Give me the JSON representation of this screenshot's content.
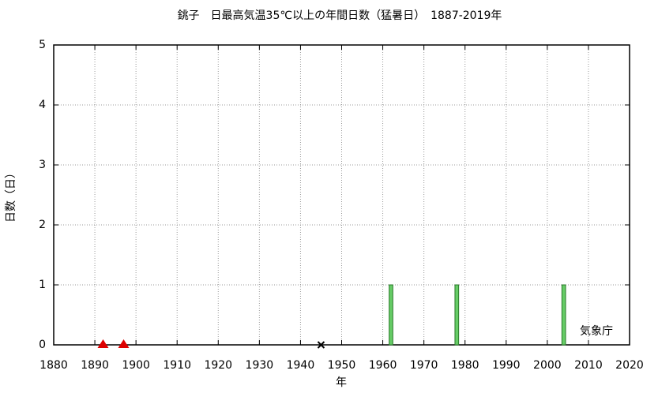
{
  "chart_data": {
    "type": "bar",
    "title": "銚子　日最高気温35℃以上の年間日数（猛暑日）　1887-2019年",
    "x_label": "年",
    "y_label": "日数（日）",
    "annotation": "気象庁",
    "series": [
      {
        "type": "bar",
        "color": "#66cc66",
        "x": [
          1962,
          1978,
          2004
        ],
        "values": [
          1,
          1,
          1
        ]
      },
      {
        "type": "triangle",
        "color": "#dd0000",
        "x": [
          1892,
          1897
        ],
        "values": [
          0,
          0
        ]
      },
      {
        "type": "cross",
        "color": "#000000",
        "x": [
          1945
        ],
        "values": [
          0
        ]
      }
    ],
    "xlim": [
      1880,
      2020
    ],
    "xticks": [
      1880,
      1890,
      1900,
      1910,
      1920,
      1930,
      1940,
      1950,
      1960,
      1970,
      1980,
      1990,
      2000,
      2010,
      2020
    ],
    "ylim": [
      0,
      5
    ],
    "yticks": [
      0,
      1,
      2,
      3,
      4,
      5
    ],
    "grid": true
  }
}
